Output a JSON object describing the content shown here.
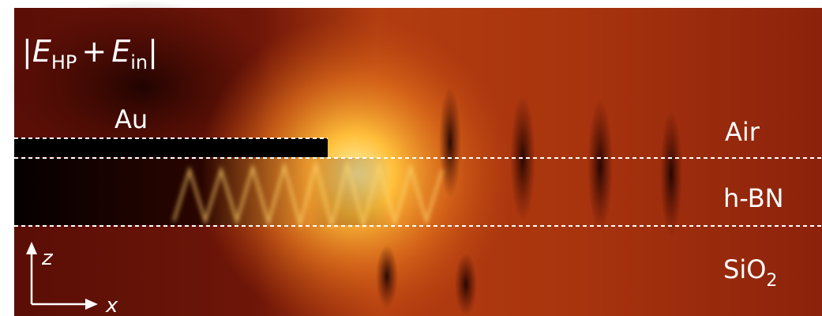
{
  "field_label": {
    "open": "|",
    "e1": "E",
    "sub1": "HP",
    "plus": "+",
    "e2": "E",
    "sub2": "in",
    "close": "|"
  },
  "regions": {
    "metal": "Au",
    "top": "Air",
    "middle": "h-BN",
    "bottom": {
      "base": "SiO",
      "sub": "2"
    }
  },
  "axes": {
    "vertical": "z",
    "horizontal": "x"
  }
}
